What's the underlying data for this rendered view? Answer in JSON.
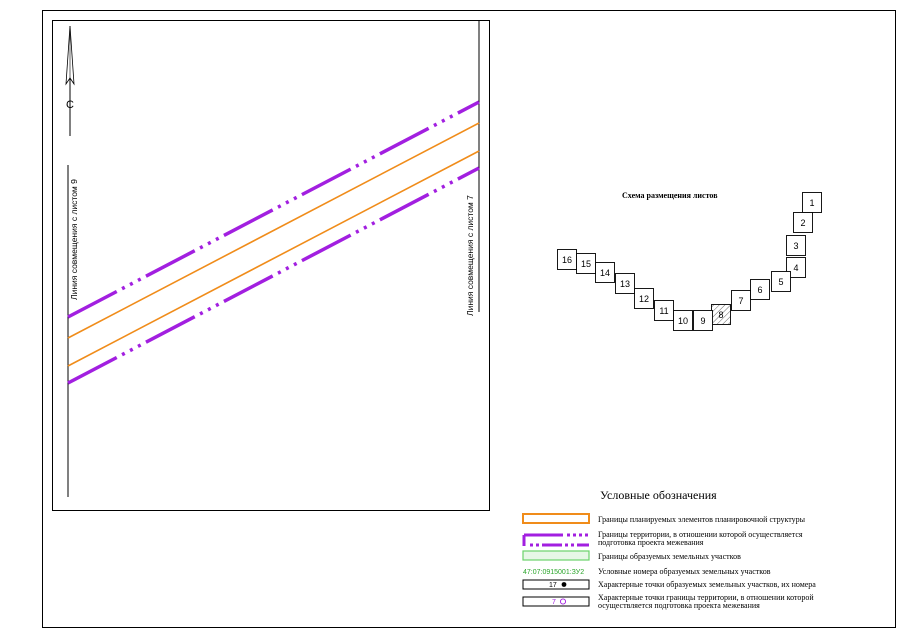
{
  "north_label": "С",
  "left_joint_label": "Линия совмещения с листом 9",
  "right_joint_label": "Линия совмещения с листом 7",
  "schema": {
    "title": "Схема размещения листов",
    "highlighted_sheet": "8",
    "sheets": [
      "1",
      "2",
      "3",
      "4",
      "5",
      "6",
      "7",
      "8",
      "9",
      "10",
      "11",
      "12",
      "13",
      "14",
      "15",
      "16"
    ]
  },
  "legend": {
    "title": "Условные обозначения",
    "items": [
      {
        "key": "planning",
        "text": "Границы планируемых элементов планировочной структуры"
      },
      {
        "key": "territory",
        "text_line1": "Границы территории, в отношении которой осуществляется",
        "text_line2": "подготовка проекта межевания"
      },
      {
        "key": "parcels",
        "text": "Границы образуемых земельных участков"
      },
      {
        "key": "numbers",
        "sample": "47:07:0915001:ЗУ2",
        "text": "Условные номера образуемых земельных участков"
      },
      {
        "key": "points",
        "sample": "17",
        "text": "Характерные точки образуемых земельных участков, их номера"
      },
      {
        "key": "territory-points",
        "sample": "7",
        "text_line1": "Характерные точки границы территории, в отношении которой",
        "text_line2": "осуществляется подготовка проекта межевания"
      }
    ]
  },
  "colors": {
    "purple": "#a21fe0",
    "orange": "#f08c1a",
    "green": "#6ad36a",
    "green_text": "#2aa52a",
    "purple_text": "#a21fe0"
  }
}
